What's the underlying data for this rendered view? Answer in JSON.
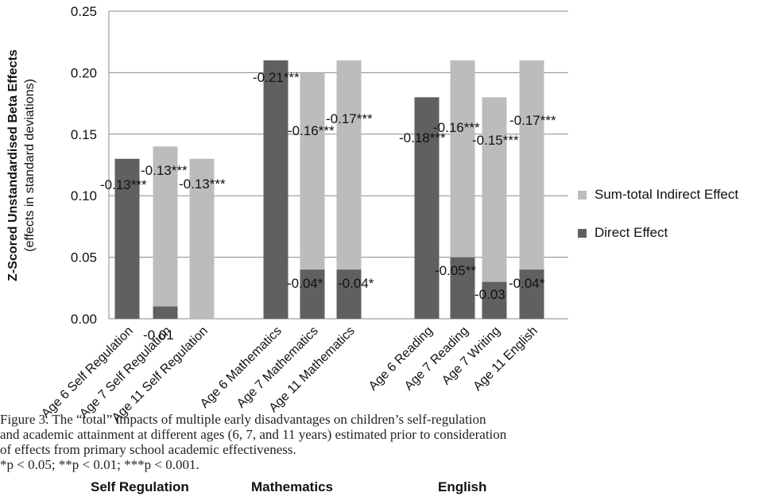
{
  "chart_data": {
    "type": "bar",
    "stacked": true,
    "ylabel": "Z-Scored Unstandardised Beta Effects",
    "ylabel_sub": "(effects in standard deviations)",
    "ylim": [
      0,
      0.25
    ],
    "yticks": [
      "0.00",
      "0.05",
      "0.10",
      "0.15",
      "0.20",
      "0.25"
    ],
    "grid": true,
    "legend_position": "right",
    "categories": [
      "Age 6 Self Regulation",
      "Age 7 Self Regulation",
      "Age 11 Self Regulation",
      "Age 6 Mathematics",
      "Age 7 Mathematics",
      "Age 11 Mathematics",
      "Age 6 Reading",
      "Age 7 Reading",
      "Age 7 Writing",
      "Age 11 English"
    ],
    "groups": [
      {
        "name": "Self Regulation",
        "categories": [
          0,
          1,
          2
        ]
      },
      {
        "name": "Mathematics",
        "categories": [
          3,
          4,
          5
        ]
      },
      {
        "name": "English",
        "categories": [
          6,
          7,
          8,
          9
        ]
      }
    ],
    "series": [
      {
        "name": "Direct Effect",
        "color": "#606060",
        "values": [
          0.13,
          0.01,
          0.0,
          0.21,
          0.04,
          0.04,
          0.18,
          0.05,
          0.03,
          0.04
        ],
        "labels": [
          "-0.13***",
          "-0.01",
          "",
          "-0.21***",
          "-0.04*",
          "-0.04*",
          "-0.18***",
          "-0.05**",
          "-0.03",
          "-0.04*"
        ]
      },
      {
        "name": "Sum-total Indirect Effect",
        "color": "#bcbcbc",
        "values": [
          0.0,
          0.13,
          0.13,
          0.0,
          0.16,
          0.17,
          0.0,
          0.16,
          0.15,
          0.17
        ],
        "labels": [
          "",
          "-0.13***",
          "-0.13***",
          "",
          "-0.16***",
          "-0.17***",
          "",
          "-0.16***",
          "-0.15***",
          "-0.17***"
        ]
      }
    ],
    "legend_order": [
      "Sum-total Indirect Effect",
      "Direct Effect"
    ]
  },
  "caption": {
    "line1": "Figure 3.   The “total” impacts of multiple early disadvantages on children’s self-regulation",
    "line2": "and academic attainment at different ages (6, 7, and 11 years) estimated prior to consideration",
    "line3": "of effects from primary school academic effectiveness.",
    "line4": "*p < 0.05; **p < 0.01; ***p < 0.001."
  },
  "colors": {
    "direct": "#606060",
    "indirect": "#bcbcbc",
    "grid": "#8a8a8a"
  }
}
